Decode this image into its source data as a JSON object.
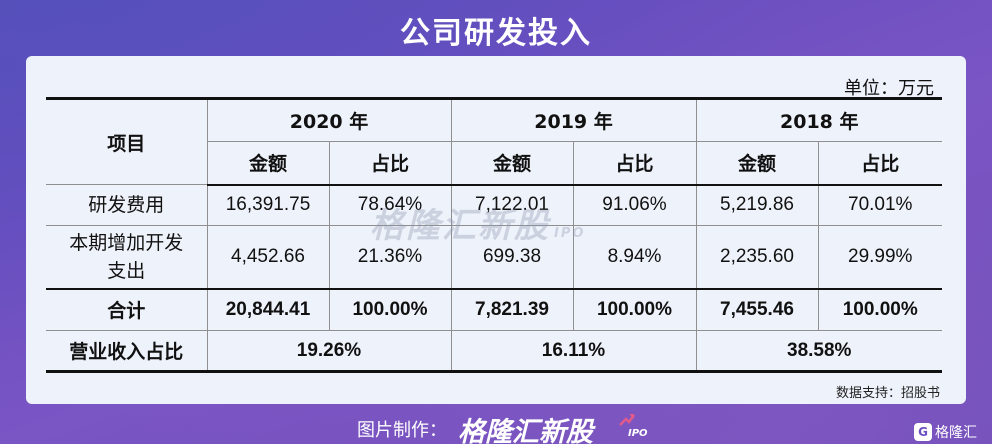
{
  "title": "公司研发投入",
  "unit_label": "单位：万元",
  "table": {
    "item_header": "项目",
    "years": [
      "2020 年",
      "2019 年",
      "2018 年"
    ],
    "sub_headers": [
      "金额",
      "占比",
      "金额",
      "占比",
      "金额",
      "占比"
    ],
    "rows": [
      {
        "label": "研发费用",
        "values": [
          "16,391.75",
          "78.64%",
          "7,122.01",
          "91.06%",
          "5,219.86",
          "70.01%"
        ]
      },
      {
        "label_line1": "本期增加开发",
        "label_line2": "支出",
        "values": [
          "4,452.66",
          "21.36%",
          "699.38",
          "8.94%",
          "2,235.60",
          "29.99%"
        ]
      },
      {
        "label": "合计",
        "values": [
          "20,844.41",
          "100.00%",
          "7,821.39",
          "100.00%",
          "7,455.46",
          "100.00%"
        ]
      },
      {
        "label": "营业收入占比",
        "values": [
          "19.26%",
          "16.11%",
          "38.58%"
        ]
      }
    ]
  },
  "watermark": {
    "text": "格隆汇新股",
    "suffix": "IPO"
  },
  "source": "数据支持：招股书",
  "footer": {
    "credit_label": "图片制作：",
    "brand": "格隆汇新股",
    "brand_suffix": "IPO",
    "corner_badge": "G",
    "corner_text": "格隆汇"
  },
  "colors": {
    "background": "#6b4fc0",
    "card": "#eef2fa",
    "text": "#111111",
    "brand_arrow": "#e05a8a"
  }
}
